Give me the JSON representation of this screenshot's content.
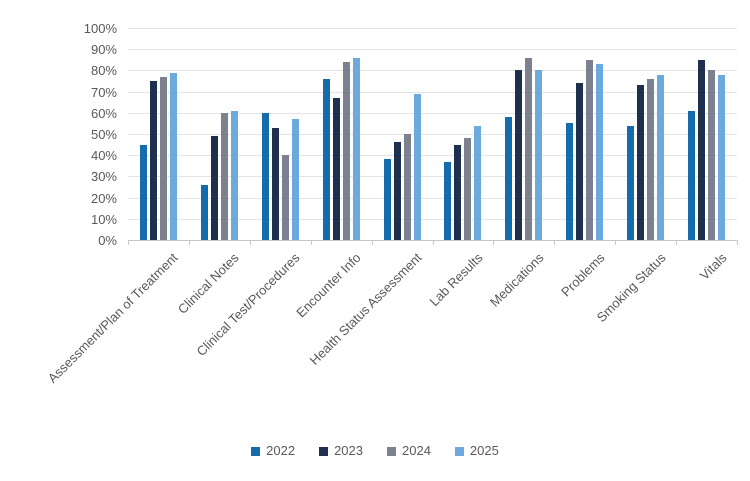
{
  "chart_data": {
    "type": "bar",
    "title": "",
    "xlabel": "",
    "ylabel": "",
    "categories": [
      "Assessment/Plan of Treatment",
      "Clinical Notes",
      "Clinical Test/Procedures",
      "Encounter Info",
      "Health Status Assessment",
      "Lab Results",
      "Medications",
      "Problems",
      "Smoking Status",
      "Vitals"
    ],
    "series": [
      {
        "name": "2022",
        "color": "#156CAD",
        "values": [
          45,
          26,
          60,
          76,
          38,
          37,
          58,
          55,
          54,
          61
        ]
      },
      {
        "name": "2023",
        "color": "#1F304E",
        "values": [
          75,
          49,
          53,
          67,
          46,
          45,
          80,
          74,
          73,
          85
        ]
      },
      {
        "name": "2024",
        "color": "#7B818E",
        "values": [
          77,
          60,
          40,
          84,
          50,
          48,
          86,
          85,
          76,
          80
        ]
      },
      {
        "name": "2025",
        "color": "#6CA9DD",
        "values": [
          79,
          61,
          57,
          86,
          69,
          54,
          80,
          83,
          78,
          78
        ]
      }
    ],
    "ylim": [
      0,
      100
    ],
    "ytick_step": 10,
    "yticks": [
      "0%",
      "10%",
      "20%",
      "30%",
      "40%",
      "50%",
      "60%",
      "70%",
      "80%",
      "90%",
      "100%"
    ],
    "grid": true,
    "legend_position": "bottom"
  },
  "style_colors": {
    "background": "#FFFFFF",
    "gridline": "#E4E4E4",
    "axis": "#C8C8C8",
    "tick": "#C8C8C8",
    "label_text": "#595959"
  }
}
